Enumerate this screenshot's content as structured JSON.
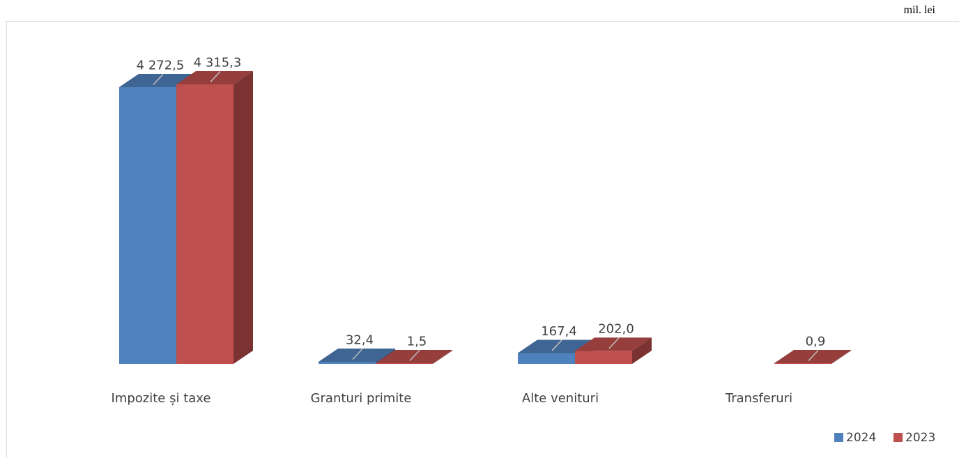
{
  "unit": "mil. lei",
  "chart_data": {
    "type": "bar",
    "style": "3d-clustered-column",
    "categories": [
      "Impozite și taxe",
      "Granturi primite",
      "Alte venituri",
      "Transferuri"
    ],
    "series": [
      {
        "name": "2024",
        "color": "#4F81BD",
        "values": [
          4272.5,
          32.4,
          167.4,
          null
        ],
        "labels": [
          "4 272,5",
          "32,4",
          "167,4",
          ""
        ]
      },
      {
        "name": "2023",
        "color": "#C0504D",
        "values": [
          4315.3,
          1.5,
          202.0,
          0.9
        ],
        "labels": [
          "4 315,3",
          "1,5",
          "202,0",
          "0,9"
        ]
      }
    ],
    "grid": false,
    "legend": "bottom-right"
  }
}
